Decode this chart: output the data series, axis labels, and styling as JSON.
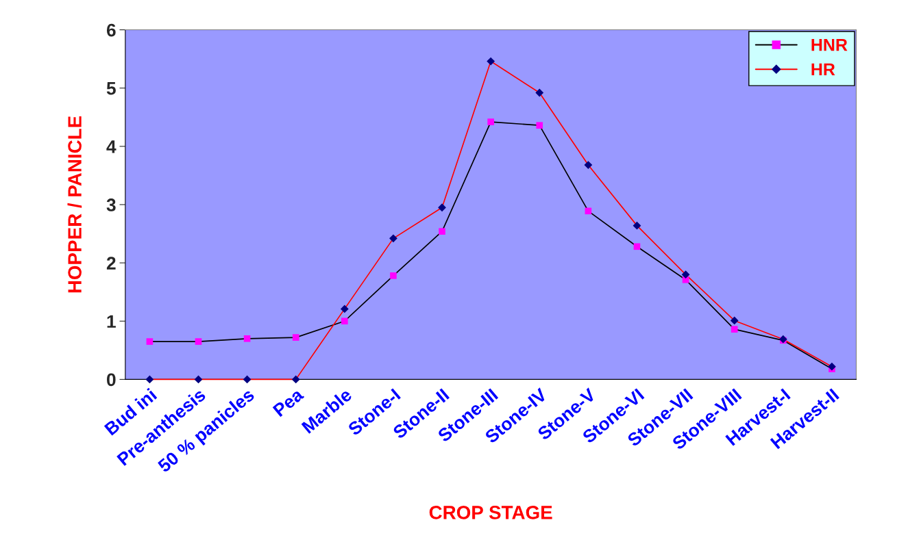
{
  "chart_data": {
    "type": "line",
    "xlabel": "CROP STAGE",
    "ylabel": "HOPPER / PANICLE",
    "categories": [
      "Bud ini",
      "Pre-anthesis",
      "50 % panicles",
      "Pea",
      "Marble",
      "Stone-I",
      "Stone-II",
      "Stone-III",
      "Stone-IV",
      "Stone-V",
      "Stone-VI",
      "Stone-VII",
      "Stone-VIII",
      "Harvest-I",
      "Harvest-II"
    ],
    "series": [
      {
        "name": "HNR",
        "color": "#000000",
        "marker": "square",
        "colors": [
          "#ff00ff",
          "#ff00ff",
          "#ff00ff",
          "#ff00ff",
          "#ff00ff",
          "#ff00ff",
          "#ff00ff",
          "#ff00ff",
          "#ff00ff",
          "#ff00ff",
          "#ff00ff",
          "#ff00ff",
          "#ff00ff",
          "#ff00ff",
          "#ff00ff"
        ],
        "values": [
          0.65,
          0.65,
          0.7,
          0.72,
          1.0,
          1.78,
          2.54,
          4.42,
          4.36,
          2.89,
          2.28,
          1.71,
          0.86,
          0.67,
          0.18
        ]
      },
      {
        "name": "HR",
        "color": "#ff0000",
        "marker": "diamond",
        "colors": [
          "#000080",
          "#000080",
          "#000080",
          "#000080",
          "#000080",
          "#000080",
          "#000080",
          "#000080",
          "#000080",
          "#000080",
          "#000080",
          "#000080",
          "#000080",
          "#000080",
          "#000080"
        ],
        "values": [
          0,
          0,
          0,
          0,
          1.21,
          2.42,
          2.95,
          5.46,
          4.92,
          3.68,
          2.64,
          1.8,
          1.01,
          0.69,
          0.22
        ]
      }
    ],
    "ylim": [
      0,
      6
    ],
    "yticks": [
      0,
      1,
      2,
      3,
      4,
      5,
      6
    ],
    "legend": "top right",
    "grid": false
  }
}
